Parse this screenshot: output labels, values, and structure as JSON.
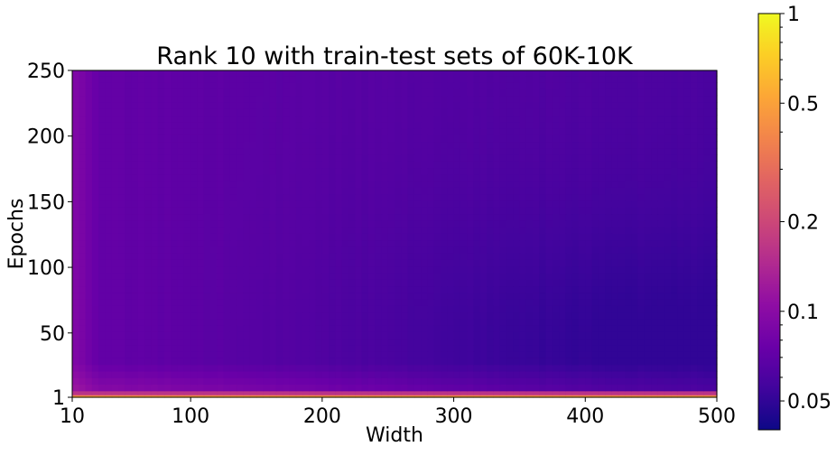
{
  "chart_data": {
    "type": "heatmap",
    "title": "Rank 10 with train-test sets of 60K-10K",
    "xlabel": "Width",
    "ylabel": "Epochs",
    "x_ticks": [
      "10",
      "100",
      "200",
      "300",
      "400",
      "500"
    ],
    "x_tick_values": [
      10,
      100,
      200,
      300,
      400,
      500
    ],
    "y_ticks": [
      "1",
      "50",
      "100",
      "150",
      "200",
      "250"
    ],
    "y_tick_values": [
      1,
      50,
      100,
      150,
      200,
      250
    ],
    "xlim": [
      10,
      500
    ],
    "ylim": [
      1,
      250
    ],
    "colormap": "plasma",
    "colorbar": {
      "scale": "log",
      "range": [
        0.04,
        1
      ],
      "ticks": [
        "1",
        "0.5",
        "0.2",
        "0.1",
        "0.05"
      ],
      "tick_values": [
        1,
        0.5,
        0.2,
        0.1,
        0.05
      ]
    },
    "field": {
      "description_values": "approximate value at (width, epoch)",
      "early_epoch_value": 0.6,
      "early_epoch_range": [
        1,
        3
      ],
      "high_epoch_value_left": 0.075,
      "high_epoch_value_right": 0.06,
      "min_value_region_width": 420,
      "min_value_region_epoch": 40,
      "min_value": 0.05
    }
  }
}
